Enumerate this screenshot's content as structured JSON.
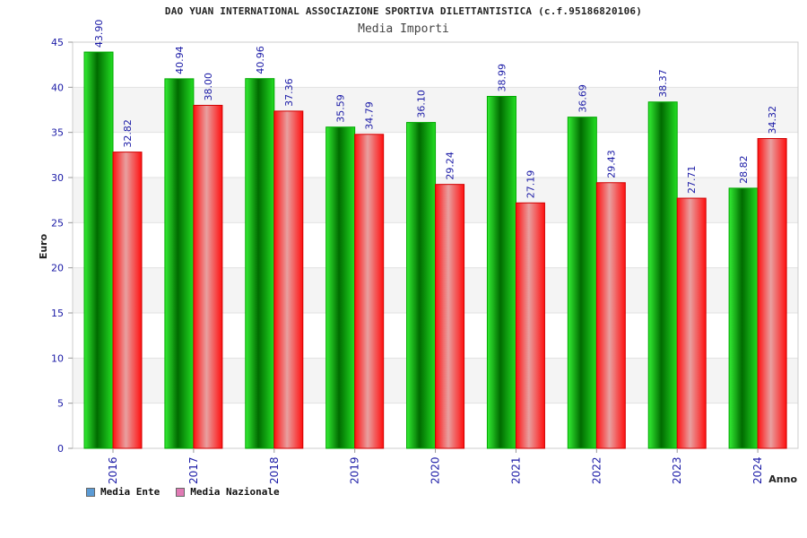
{
  "chart_data": {
    "type": "bar",
    "title": "DAO YUAN INTERNATIONAL ASSOCIAZIONE SPORTIVA DILETTANTISTICA (c.f.95186820106)",
    "subtitle": "Media Importi",
    "xlabel": "Anno",
    "ylabel": "Euro",
    "ylim": [
      0,
      45
    ],
    "yticks": [
      0,
      5,
      10,
      15,
      20,
      25,
      30,
      35,
      40,
      45
    ],
    "categories": [
      "2016",
      "2017",
      "2018",
      "2019",
      "2020",
      "2021",
      "2022",
      "2023",
      "2024"
    ],
    "series": [
      {
        "name": "Media Ente",
        "values": [
          43.9,
          40.94,
          40.96,
          35.59,
          36.1,
          38.99,
          36.69,
          38.37,
          28.82
        ],
        "labels": [
          "43.90",
          "40.94",
          "40.96",
          "35.59",
          "36.10",
          "38.99",
          "36.69",
          "38.37",
          "28.82"
        ],
        "color": "#00c800",
        "legend_color": "#5b9bd5"
      },
      {
        "name": "Media Nazionale",
        "values": [
          32.82,
          38.0,
          37.36,
          34.79,
          29.24,
          27.19,
          29.43,
          27.71,
          34.32
        ],
        "labels": [
          "32.82",
          "38.00",
          "37.36",
          "34.79",
          "29.24",
          "27.19",
          "29.43",
          "27.71",
          "34.32"
        ],
        "color": "#ff1a1a",
        "legend_color": "#e07ab4"
      }
    ],
    "grid": true,
    "legend": "bottom-left"
  }
}
